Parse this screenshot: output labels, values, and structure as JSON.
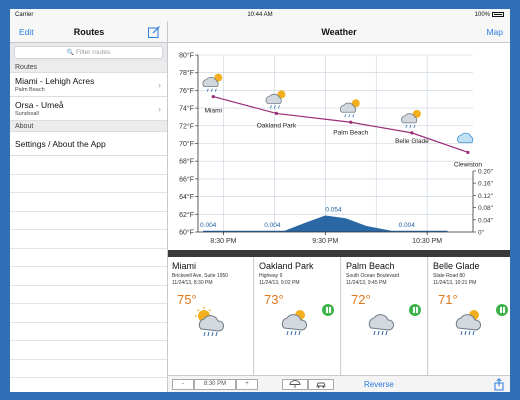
{
  "status_bar": {
    "carrier": "Carrier",
    "time": "10:44 AM",
    "battery": "100%"
  },
  "sidebar": {
    "edit_label": "Edit",
    "title": "Routes",
    "search_placeholder": "Filter routes",
    "routes_header": "Routes",
    "routes": [
      {
        "name": "Miami - Lehigh Acres",
        "subtitle": "Palm Beach"
      },
      {
        "name": "Orsa - Umeå",
        "subtitle": "Sundsvall"
      }
    ],
    "about_header": "About",
    "settings_label": "Settings / About the App"
  },
  "main": {
    "title": "Weather",
    "map_label": "Map"
  },
  "chart_data": {
    "type": "line",
    "x_ticks": [
      "8:30 PM",
      "9:30 PM",
      "10:30 PM"
    ],
    "y_left_ticks": [
      "60°F",
      "62°F",
      "64°F",
      "66°F",
      "68°F",
      "70°F",
      "72°F",
      "74°F",
      "76°F",
      "78°F",
      "80°F"
    ],
    "y_left_range": [
      60,
      80
    ],
    "y_right_ticks": [
      "0\"",
      "0.04\"",
      "0.08\"",
      "0.12\"",
      "0.16\"",
      "0.20\""
    ],
    "y_right_range": [
      0,
      0.2
    ],
    "x_hour_range": [
      20.25,
      22.95
    ],
    "temperature_series": {
      "x_hours": [
        20.4,
        21.02,
        21.75,
        22.35,
        22.9
      ],
      "values": [
        75.3,
        73.4,
        72.4,
        71.2,
        69.0
      ]
    },
    "precip_series": {
      "x_hours": [
        20.3,
        20.5,
        20.8,
        21.1,
        21.3,
        21.5,
        21.7,
        21.9,
        22.15,
        22.45,
        22.7
      ],
      "values": [
        0.004,
        0.004,
        0.004,
        0.004,
        0.03,
        0.054,
        0.045,
        0.02,
        0.004,
        0.004,
        0.004
      ]
    },
    "precip_labels": [
      {
        "hour": 20.35,
        "value": "0.004"
      },
      {
        "hour": 20.98,
        "value": "0.004"
      },
      {
        "hour": 21.58,
        "value": "0.054"
      },
      {
        "hour": 22.3,
        "value": "0.004"
      }
    ],
    "places": [
      {
        "name": "Miami",
        "hour": 20.4
      },
      {
        "name": "Oakland Park",
        "hour": 21.02
      },
      {
        "name": "Palm Beach",
        "hour": 21.75
      },
      {
        "name": "Belle Glade",
        "hour": 22.35
      },
      {
        "name": "Clewiston",
        "hour": 22.9
      }
    ],
    "colors": {
      "temperature_line": "#9b2d78",
      "precipitation": "#1f5fa0",
      "grid": "#c8d2dc"
    }
  },
  "forecast_cards": [
    {
      "name": "Miami",
      "address": "Brickwell Ave, Suite 1950",
      "datetime": "11/24/13, 8:30 PM",
      "temp": "75°",
      "icon": "partly-cloudy-rain-icon",
      "pause": false
    },
    {
      "name": "Oakland Park",
      "address": "Highway 9",
      "datetime": "11/24/13, 9:02 PM",
      "temp": "73°",
      "icon": "partly-cloudy-rain-icon",
      "pause": true
    },
    {
      "name": "Palm Beach",
      "address": "South Ocean Boulevard",
      "datetime": "11/24/13, 9:45 PM",
      "temp": "72°",
      "icon": "rain-cloud-icon",
      "pause": true
    },
    {
      "name": "Belle Glade",
      "address": "State Road 80",
      "datetime": "11/24/13, 10:21 PM",
      "temp": "71°",
      "icon": "partly-cloudy-rain-icon",
      "pause": true
    }
  ],
  "toolbar": {
    "minus_label": "-",
    "time_value": "8:30 PM",
    "plus_label": "+",
    "reverse_label": "Reverse"
  }
}
